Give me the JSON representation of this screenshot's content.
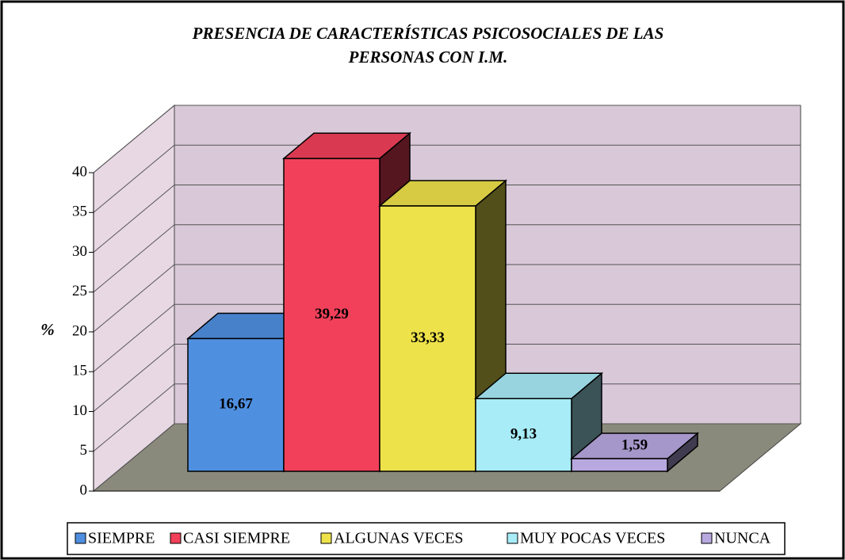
{
  "chart_data": {
    "type": "bar",
    "title": [
      "PRESENCIA DE CARACTERÍSTICAS PSICOSOCIALES DE LAS",
      "PERSONAS CON I.M."
    ],
    "y_label": "%",
    "series": [
      {
        "name": "SIEMPRE",
        "color": "#4f8fe0",
        "values": [
          16.67
        ],
        "value_labels": [
          "16,67"
        ]
      },
      {
        "name": "CASI SIEMPRE",
        "color": "#f2405a",
        "values": [
          39.29
        ],
        "value_labels": [
          "39,29"
        ]
      },
      {
        "name": "ALGUNAS VECES",
        "color": "#eee24a",
        "values": [
          33.33
        ],
        "value_labels": [
          "33,33"
        ]
      },
      {
        "name": "MUY POCAS VECES",
        "color": "#a8ecf8",
        "values": [
          9.13
        ],
        "value_labels": [
          "9,13"
        ]
      },
      {
        "name": "NUNCA",
        "color": "#b8a8e0",
        "values": [
          1.59
        ],
        "value_labels": [
          "1,59"
        ]
      }
    ],
    "ylim": [
      0,
      40
    ],
    "yticks": [
      0,
      5,
      10,
      15,
      20,
      25,
      30,
      35,
      40
    ],
    "grid": true,
    "legend": "bottom"
  }
}
